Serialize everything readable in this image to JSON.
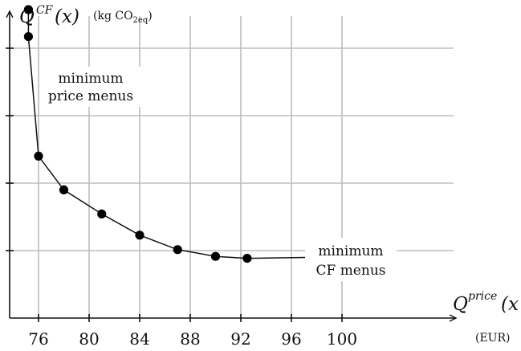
{
  "chart_data": {
    "type": "scatter",
    "title": "",
    "connected": true,
    "xlim": [
      74,
      104
    ],
    "ylim": [
      0,
      37
    ],
    "x_ticks": [
      76,
      80,
      84,
      88,
      92,
      96,
      100
    ],
    "y_grid": [
      7,
      14,
      21,
      28,
      35
    ],
    "grid": true,
    "x": [
      75.2,
      75.2,
      76,
      78,
      81,
      84,
      87,
      90,
      92.5,
      97.5
    ],
    "y": [
      32,
      29.2,
      16.8,
      13.3,
      10.8,
      8.6,
      7.1,
      6.4,
      6.2,
      6.3
    ],
    "y_axis_label": {
      "symbol": "Q",
      "superscript": "CF",
      "argument": "(x)",
      "unit_prefix": "(kg CO",
      "unit_subscript": "2eq",
      "unit_suffix": ")"
    },
    "x_axis_label": {
      "symbol": "Q",
      "superscript": "price",
      "argument": "(x",
      "unit": "(EUR)"
    },
    "annotations": [
      {
        "lines": [
          "minimum",
          "price menus"
        ]
      },
      {
        "lines": [
          "minimum",
          "CF menus"
        ]
      }
    ]
  }
}
